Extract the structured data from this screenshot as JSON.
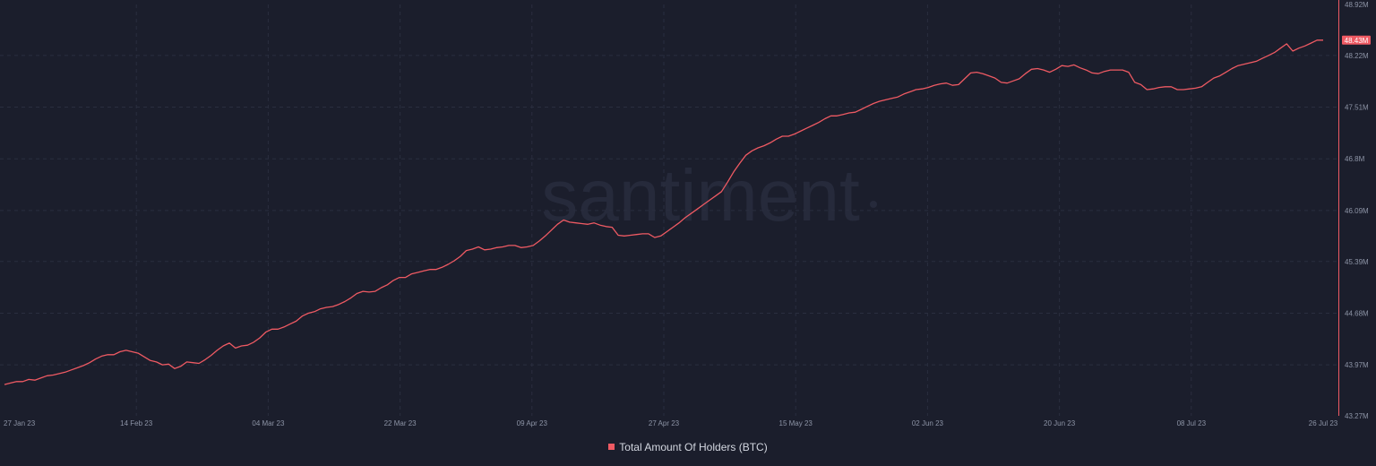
{
  "colors": {
    "background": "#1b1e2c",
    "series": "#ee5a63",
    "grid": "#2a2e3f",
    "tick_text": "#8d94a6",
    "watermark": "#262a3b"
  },
  "watermark": "santiment",
  "chart_data": {
    "type": "line",
    "x_ticks": [
      "27 Jan 23",
      "14 Feb 23",
      "04 Mar 23",
      "22 Mar 23",
      "09 Apr 23",
      "27 Apr 23",
      "15 May 23",
      "02 Jun 23",
      "20 Jun 23",
      "08 Jul 23",
      "26 Jul 23"
    ],
    "y_ticks": [
      "48.92M",
      "48.22M",
      "47.51M",
      "46.8M",
      "46.09M",
      "45.39M",
      "44.68M",
      "43.97M",
      "43.27M"
    ],
    "ylim": [
      43.27,
      48.92
    ],
    "y_unit": "M",
    "grid": true,
    "legend_position": "bottom-center",
    "last_value_label": "48.43M",
    "series": [
      {
        "name": "Total Amount Of Holders (BTC)",
        "x_range": [
          "2023-01-27",
          "2023-07-26"
        ],
        "values": [
          43.7,
          43.72,
          43.74,
          43.74,
          43.77,
          43.76,
          43.79,
          43.82,
          43.83,
          43.85,
          43.87,
          43.9,
          43.93,
          43.96,
          44.0,
          44.05,
          44.09,
          44.11,
          44.11,
          44.15,
          44.17,
          44.15,
          44.13,
          44.08,
          44.03,
          44.01,
          43.97,
          43.98,
          43.92,
          43.95,
          44.01,
          44.0,
          43.99,
          44.04,
          44.1,
          44.17,
          44.23,
          44.27,
          44.2,
          44.23,
          44.24,
          44.28,
          44.34,
          44.42,
          44.46,
          44.46,
          44.49,
          44.53,
          44.57,
          44.64,
          44.68,
          44.7,
          44.74,
          44.76,
          44.77,
          44.8,
          44.84,
          44.89,
          44.95,
          44.98,
          44.97,
          44.98,
          45.03,
          45.07,
          45.13,
          45.17,
          45.17,
          45.22,
          45.24,
          45.26,
          45.28,
          45.28,
          45.31,
          45.35,
          45.4,
          45.46,
          45.54,
          45.56,
          45.59,
          45.55,
          45.56,
          45.58,
          45.59,
          45.61,
          45.61,
          45.58,
          45.59,
          45.61,
          45.67,
          45.74,
          45.82,
          45.9,
          45.96,
          45.93,
          45.92,
          45.91,
          45.9,
          45.92,
          45.89,
          45.87,
          45.86,
          45.75,
          45.74,
          45.75,
          45.76,
          45.77,
          45.77,
          45.72,
          45.74,
          45.8,
          45.86,
          45.92,
          45.99,
          46.05,
          46.11,
          46.17,
          46.23,
          46.29,
          46.35,
          46.48,
          46.62,
          46.74,
          46.85,
          46.91,
          46.95,
          46.98,
          47.02,
          47.07,
          47.11,
          47.11,
          47.14,
          47.18,
          47.22,
          47.26,
          47.3,
          47.35,
          47.39,
          47.39,
          47.41,
          47.43,
          47.44,
          47.48,
          47.52,
          47.56,
          47.59,
          47.61,
          47.63,
          47.65,
          47.69,
          47.72,
          47.75,
          47.76,
          47.78,
          47.81,
          47.83,
          47.84,
          47.81,
          47.82,
          47.9,
          47.98,
          47.99,
          47.97,
          47.94,
          47.91,
          47.85,
          47.84,
          47.87,
          47.9,
          47.97,
          48.03,
          48.04,
          48.02,
          47.99,
          48.03,
          48.08,
          48.07,
          48.09,
          48.05,
          48.02,
          47.98,
          47.97,
          48.0,
          48.02,
          48.02,
          48.02,
          47.99,
          47.85,
          47.82,
          47.75,
          47.76,
          47.78,
          47.79,
          47.79,
          47.75,
          47.75,
          47.76,
          47.77,
          47.79,
          47.85,
          47.91,
          47.94,
          47.99,
          48.04,
          48.08,
          48.1,
          48.12,
          48.14,
          48.18,
          48.22,
          48.26,
          48.32,
          48.38,
          48.28,
          48.32,
          48.35,
          48.39,
          48.43,
          48.43
        ]
      }
    ]
  }
}
